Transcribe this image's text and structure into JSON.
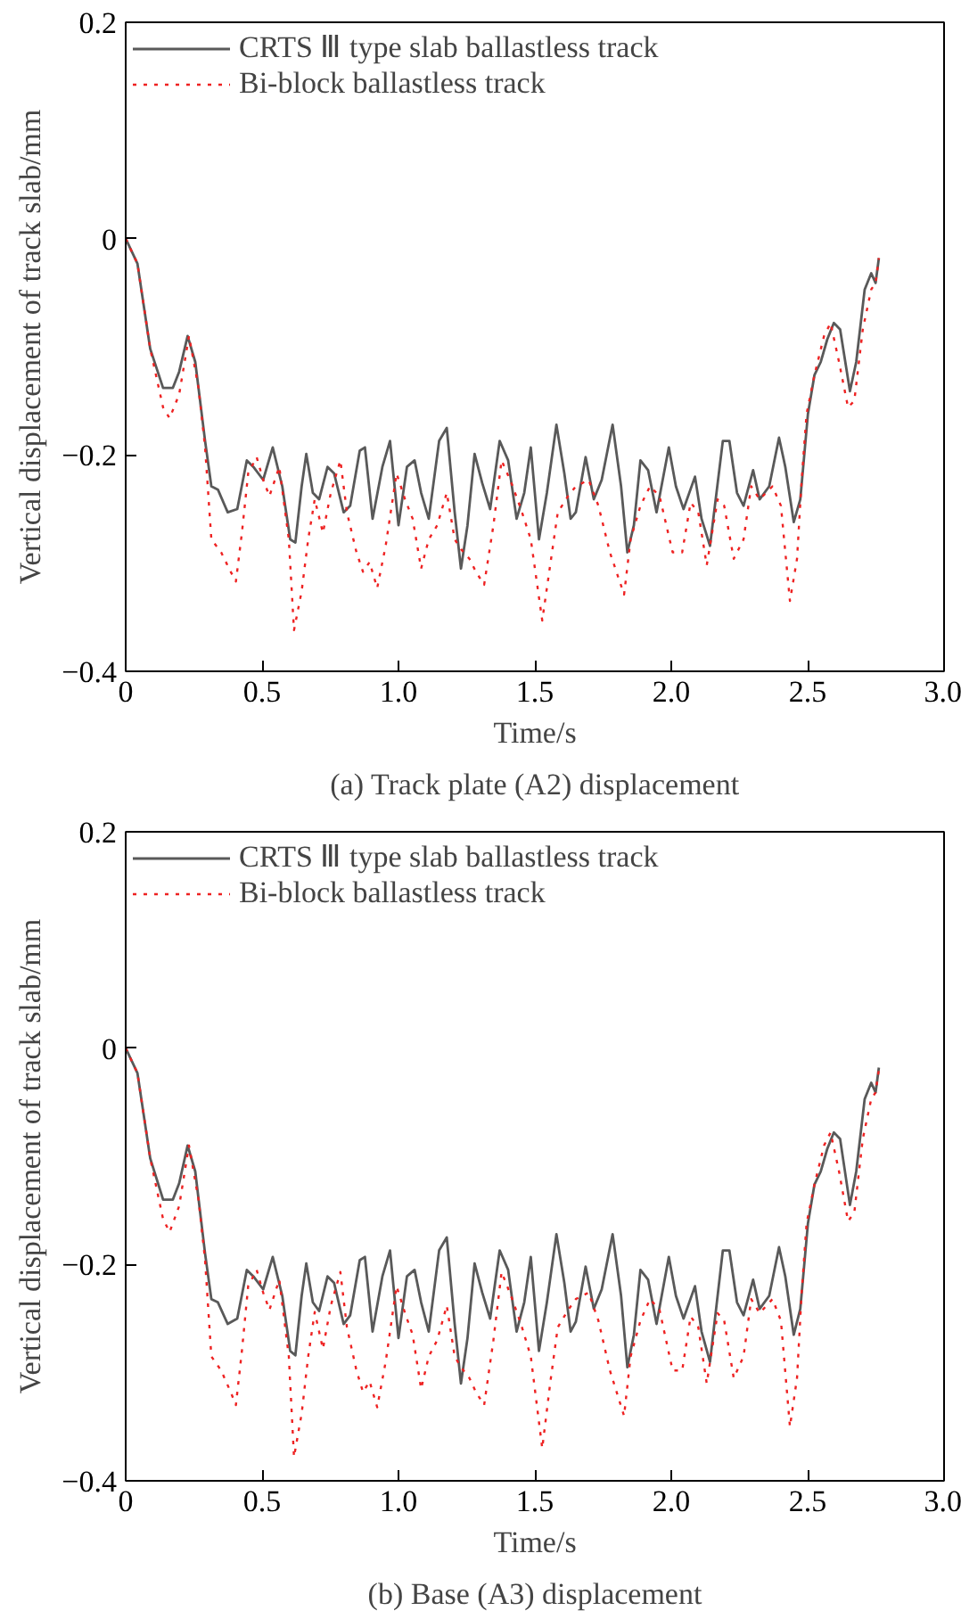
{
  "chart_data": [
    {
      "type": "line",
      "title": "(a) Track plate (A2) displacement",
      "xlabel": "Time/s",
      "ylabel": "Vertical displacement of track slab/mm",
      "xlim": [
        0,
        3.0
      ],
      "ylim": [
        -0.4,
        0.2
      ],
      "xticks": [
        0,
        0.5,
        {
          "value": 1,
          "label": "1.0"
        },
        1.5,
        {
          "value": 2,
          "label": "2.0"
        },
        2.5,
        {
          "value": 3,
          "label": "3.0"
        }
      ],
      "yticks": [
        -0.4,
        -0.2,
        0,
        0.2
      ],
      "grid": false,
      "legend": "top left",
      "marker": "none",
      "series": [
        {
          "name": "CRTS Ⅲ type slab ballastless track",
          "color": "#595959",
          "line_style": "solid",
          "x": [
            0,
            0.043,
            0.09,
            0.137,
            0.173,
            0.196,
            0.227,
            0.255,
            0.291,
            0.314,
            0.338,
            0.374,
            0.409,
            0.444,
            0.468,
            0.504,
            0.539,
            0.574,
            0.603,
            0.622,
            0.645,
            0.662,
            0.686,
            0.709,
            0.74,
            0.764,
            0.799,
            0.823,
            0.858,
            0.877,
            0.905,
            0.941,
            0.969,
            1.0,
            1.031,
            1.059,
            1.083,
            1.111,
            1.149,
            1.177,
            1.206,
            1.229,
            1.253,
            1.279,
            1.307,
            1.336,
            1.371,
            1.402,
            1.433,
            1.461,
            1.485,
            1.515,
            1.544,
            1.579,
            1.608,
            1.631,
            1.65,
            1.686,
            1.716,
            1.745,
            1.785,
            1.816,
            1.839,
            1.863,
            1.887,
            1.915,
            1.946,
            1.991,
            2.017,
            2.045,
            2.087,
            2.111,
            2.142,
            2.189,
            2.213,
            2.241,
            2.265,
            2.3,
            2.324,
            2.359,
            2.395,
            2.418,
            2.449,
            2.473,
            2.501,
            2.525,
            2.548,
            2.572,
            2.596,
            2.619,
            2.655,
            2.678,
            2.709,
            2.733,
            2.749,
            2.761
          ],
          "values": [
            0,
            -0.023,
            -0.102,
            -0.138,
            -0.138,
            -0.123,
            -0.09,
            -0.114,
            -0.187,
            -0.229,
            -0.232,
            -0.253,
            -0.25,
            -0.205,
            -0.211,
            -0.223,
            -0.193,
            -0.229,
            -0.278,
            -0.281,
            -0.229,
            -0.199,
            -0.235,
            -0.241,
            -0.211,
            -0.217,
            -0.253,
            -0.247,
            -0.196,
            -0.193,
            -0.259,
            -0.211,
            -0.187,
            -0.265,
            -0.211,
            -0.205,
            -0.235,
            -0.259,
            -0.187,
            -0.175,
            -0.253,
            -0.305,
            -0.265,
            -0.199,
            -0.226,
            -0.25,
            -0.187,
            -0.205,
            -0.259,
            -0.235,
            -0.193,
            -0.278,
            -0.235,
            -0.172,
            -0.217,
            -0.259,
            -0.253,
            -0.202,
            -0.241,
            -0.223,
            -0.172,
            -0.229,
            -0.29,
            -0.265,
            -0.205,
            -0.214,
            -0.253,
            -0.193,
            -0.229,
            -0.25,
            -0.22,
            -0.259,
            -0.284,
            -0.187,
            -0.187,
            -0.235,
            -0.247,
            -0.214,
            -0.241,
            -0.229,
            -0.184,
            -0.211,
            -0.262,
            -0.241,
            -0.162,
            -0.126,
            -0.114,
            -0.093,
            -0.078,
            -0.084,
            -0.141,
            -0.114,
            -0.047,
            -0.032,
            -0.041,
            -0.018
          ]
        },
        {
          "name": "Bi-block ballastless track",
          "color": "#ee2222",
          "line_style": "dotted",
          "x": [
            0,
            0.043,
            0.09,
            0.137,
            0.161,
            0.196,
            0.232,
            0.267,
            0.291,
            0.314,
            0.35,
            0.385,
            0.404,
            0.426,
            0.449,
            0.48,
            0.504,
            0.527,
            0.563,
            0.598,
            0.617,
            0.645,
            0.669,
            0.693,
            0.723,
            0.752,
            0.787,
            0.811,
            0.846,
            0.87,
            0.894,
            0.922,
            0.953,
            0.993,
            1.024,
            1.052,
            1.083,
            1.111,
            1.142,
            1.177,
            1.206,
            1.229,
            1.26,
            1.284,
            1.314,
            1.348,
            1.378,
            1.414,
            1.449,
            1.485,
            1.527,
            1.556,
            1.584,
            1.622,
            1.65,
            1.697,
            1.733,
            1.775,
            1.827,
            1.851,
            1.887,
            1.922,
            1.957,
            2.005,
            2.04,
            2.071,
            2.099,
            2.13,
            2.17,
            2.194,
            2.229,
            2.265,
            2.293,
            2.324,
            2.371,
            2.402,
            2.435,
            2.461,
            2.478,
            2.496,
            2.525,
            2.56,
            2.584,
            2.615,
            2.648,
            2.671,
            2.702,
            2.733,
            2.749,
            2.761
          ],
          "values": [
            0,
            -0.023,
            -0.102,
            -0.156,
            -0.166,
            -0.144,
            -0.09,
            -0.138,
            -0.193,
            -0.278,
            -0.29,
            -0.308,
            -0.317,
            -0.272,
            -0.217,
            -0.202,
            -0.223,
            -0.238,
            -0.211,
            -0.278,
            -0.362,
            -0.326,
            -0.278,
            -0.241,
            -0.272,
            -0.235,
            -0.205,
            -0.253,
            -0.29,
            -0.308,
            -0.299,
            -0.323,
            -0.284,
            -0.217,
            -0.241,
            -0.259,
            -0.305,
            -0.278,
            -0.265,
            -0.235,
            -0.278,
            -0.287,
            -0.296,
            -0.308,
            -0.32,
            -0.265,
            -0.205,
            -0.226,
            -0.25,
            -0.278,
            -0.353,
            -0.302,
            -0.253,
            -0.238,
            -0.229,
            -0.223,
            -0.247,
            -0.29,
            -0.329,
            -0.278,
            -0.247,
            -0.229,
            -0.238,
            -0.29,
            -0.29,
            -0.244,
            -0.253,
            -0.302,
            -0.241,
            -0.247,
            -0.296,
            -0.278,
            -0.229,
            -0.241,
            -0.229,
            -0.247,
            -0.335,
            -0.296,
            -0.223,
            -0.162,
            -0.126,
            -0.09,
            -0.078,
            -0.114,
            -0.156,
            -0.15,
            -0.084,
            -0.047,
            -0.041,
            -0.018
          ]
        }
      ]
    },
    {
      "type": "line",
      "title": "(b) Base (A3) displacement",
      "xlabel": "Time/s",
      "ylabel": "Vertical displacement of track slab/mm",
      "xlim": [
        0,
        3.0
      ],
      "ylim": [
        -0.4,
        0.2
      ],
      "xticks": [
        0,
        0.5,
        {
          "value": 1,
          "label": "1.0"
        },
        1.5,
        {
          "value": 2,
          "label": "2.0"
        },
        2.5,
        {
          "value": 3,
          "label": "3.0"
        }
      ],
      "yticks": [
        -0.4,
        -0.2,
        0,
        0.2
      ],
      "grid": false,
      "legend": "top left",
      "marker": "none",
      "series": [
        {
          "name": "CRTS Ⅲ type slab ballastless track",
          "color": "#595959",
          "line_style": "solid",
          "x": [
            0,
            0.043,
            0.09,
            0.137,
            0.173,
            0.196,
            0.227,
            0.255,
            0.291,
            0.314,
            0.338,
            0.374,
            0.409,
            0.444,
            0.468,
            0.504,
            0.539,
            0.574,
            0.603,
            0.622,
            0.645,
            0.662,
            0.686,
            0.709,
            0.74,
            0.764,
            0.799,
            0.823,
            0.858,
            0.877,
            0.905,
            0.941,
            0.969,
            1.0,
            1.031,
            1.059,
            1.083,
            1.111,
            1.149,
            1.177,
            1.206,
            1.229,
            1.253,
            1.279,
            1.307,
            1.336,
            1.371,
            1.402,
            1.433,
            1.461,
            1.485,
            1.515,
            1.544,
            1.579,
            1.608,
            1.631,
            1.65,
            1.686,
            1.716,
            1.745,
            1.785,
            1.816,
            1.839,
            1.863,
            1.887,
            1.915,
            1.946,
            1.991,
            2.017,
            2.045,
            2.087,
            2.111,
            2.142,
            2.189,
            2.213,
            2.241,
            2.265,
            2.3,
            2.324,
            2.359,
            2.395,
            2.418,
            2.449,
            2.473,
            2.501,
            2.525,
            2.548,
            2.572,
            2.596,
            2.619,
            2.655,
            2.678,
            2.709,
            2.733,
            2.749,
            2.761
          ],
          "values": [
            0,
            -0.023,
            -0.102,
            -0.14,
            -0.14,
            -0.125,
            -0.09,
            -0.114,
            -0.19,
            -0.232,
            -0.235,
            -0.255,
            -0.25,
            -0.205,
            -0.211,
            -0.223,
            -0.193,
            -0.229,
            -0.28,
            -0.284,
            -0.229,
            -0.199,
            -0.235,
            -0.243,
            -0.211,
            -0.217,
            -0.255,
            -0.247,
            -0.196,
            -0.193,
            -0.262,
            -0.211,
            -0.187,
            -0.268,
            -0.211,
            -0.205,
            -0.235,
            -0.262,
            -0.187,
            -0.175,
            -0.255,
            -0.31,
            -0.268,
            -0.199,
            -0.226,
            -0.25,
            -0.187,
            -0.205,
            -0.262,
            -0.235,
            -0.193,
            -0.28,
            -0.235,
            -0.172,
            -0.217,
            -0.262,
            -0.253,
            -0.202,
            -0.241,
            -0.223,
            -0.172,
            -0.229,
            -0.295,
            -0.265,
            -0.205,
            -0.214,
            -0.255,
            -0.193,
            -0.229,
            -0.25,
            -0.22,
            -0.262,
            -0.29,
            -0.187,
            -0.187,
            -0.235,
            -0.247,
            -0.214,
            -0.241,
            -0.229,
            -0.184,
            -0.211,
            -0.265,
            -0.241,
            -0.162,
            -0.126,
            -0.114,
            -0.093,
            -0.078,
            -0.084,
            -0.145,
            -0.114,
            -0.047,
            -0.032,
            -0.041,
            -0.018
          ]
        },
        {
          "name": "Bi-block ballastless track",
          "color": "#ee2222",
          "line_style": "dotted",
          "x": [
            0,
            0.043,
            0.09,
            0.137,
            0.161,
            0.196,
            0.232,
            0.267,
            0.291,
            0.314,
            0.35,
            0.385,
            0.404,
            0.426,
            0.449,
            0.48,
            0.504,
            0.527,
            0.563,
            0.598,
            0.617,
            0.645,
            0.669,
            0.693,
            0.723,
            0.752,
            0.787,
            0.811,
            0.846,
            0.87,
            0.894,
            0.922,
            0.953,
            0.993,
            1.024,
            1.052,
            1.083,
            1.111,
            1.142,
            1.177,
            1.206,
            1.229,
            1.26,
            1.284,
            1.314,
            1.348,
            1.378,
            1.414,
            1.449,
            1.485,
            1.527,
            1.556,
            1.584,
            1.622,
            1.65,
            1.697,
            1.733,
            1.775,
            1.827,
            1.851,
            1.887,
            1.922,
            1.957,
            2.005,
            2.04,
            2.071,
            2.099,
            2.13,
            2.17,
            2.194,
            2.229,
            2.265,
            2.293,
            2.324,
            2.371,
            2.402,
            2.435,
            2.461,
            2.478,
            2.496,
            2.525,
            2.56,
            2.584,
            2.615,
            2.648,
            2.671,
            2.702,
            2.733,
            2.749,
            2.761
          ],
          "values": [
            0,
            -0.023,
            -0.102,
            -0.158,
            -0.17,
            -0.146,
            -0.09,
            -0.14,
            -0.196,
            -0.285,
            -0.298,
            -0.318,
            -0.33,
            -0.28,
            -0.22,
            -0.205,
            -0.226,
            -0.242,
            -0.214,
            -0.285,
            -0.378,
            -0.338,
            -0.285,
            -0.244,
            -0.278,
            -0.238,
            -0.207,
            -0.258,
            -0.298,
            -0.318,
            -0.308,
            -0.332,
            -0.29,
            -0.22,
            -0.245,
            -0.265,
            -0.315,
            -0.285,
            -0.27,
            -0.238,
            -0.285,
            -0.295,
            -0.305,
            -0.318,
            -0.33,
            -0.27,
            -0.207,
            -0.23,
            -0.255,
            -0.285,
            -0.37,
            -0.31,
            -0.258,
            -0.242,
            -0.232,
            -0.226,
            -0.252,
            -0.298,
            -0.34,
            -0.285,
            -0.252,
            -0.232,
            -0.242,
            -0.298,
            -0.298,
            -0.248,
            -0.258,
            -0.31,
            -0.245,
            -0.252,
            -0.305,
            -0.285,
            -0.232,
            -0.245,
            -0.232,
            -0.252,
            -0.35,
            -0.305,
            -0.226,
            -0.162,
            -0.126,
            -0.09,
            -0.078,
            -0.114,
            -0.16,
            -0.152,
            -0.084,
            -0.047,
            -0.041,
            -0.02
          ]
        }
      ]
    }
  ]
}
